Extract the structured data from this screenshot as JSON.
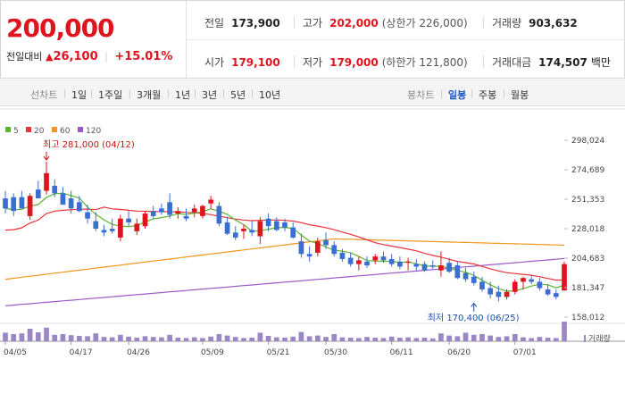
{
  "quote": {
    "price": "200,000",
    "change_label": "전일대비",
    "change_arrow": "▲",
    "change_amount": "26,100",
    "change_percent": "+15.01%",
    "prev_close_label": "전일",
    "prev_close": "173,900",
    "high_label": "고가",
    "high": "202,000",
    "upper_limit_text": "(상한가 226,000)",
    "volume_label": "거래량",
    "volume": "903,632",
    "open_label": "시가",
    "open": "179,100",
    "low_label": "저가",
    "low": "179,000",
    "lower_limit_text": "(하한가 121,800)",
    "trade_value_label": "거래대금",
    "trade_value": "174,507",
    "trade_value_unit": "백만"
  },
  "toolbar": {
    "line_chart_label": "선차트",
    "line_periods": [
      "1일",
      "1주일",
      "3개월",
      "1년",
      "3년",
      "5년",
      "10년"
    ],
    "candle_chart_label": "봉차트",
    "candle_periods": [
      "일봉",
      "주봉",
      "월봉"
    ],
    "active_candle_period": "일봉"
  },
  "colors": {
    "up": "#e0141e",
    "down": "#3a6fd0",
    "ma5": "#5cb531",
    "ma20": "#e8333b",
    "ma60": "#f0961e",
    "ma120": "#9b59c6",
    "volume": "#9b87c6"
  },
  "chart_data": {
    "type": "candlestick",
    "title": "",
    "legend": [
      {
        "name": "5",
        "color": "#5cb531"
      },
      {
        "name": "20",
        "color": "#e8333b"
      },
      {
        "name": "60",
        "color": "#f0961e"
      },
      {
        "name": "120",
        "color": "#9b59c6"
      }
    ],
    "legend_position": "top-left",
    "y_ticks": [
      "298,024",
      "274,689",
      "251,353",
      "228,018",
      "204,683",
      "181,347",
      "158,012"
    ],
    "y_tick_values": [
      298024,
      274689,
      251353,
      228018,
      204683,
      181347,
      158012
    ],
    "ylim": [
      158012,
      298024
    ],
    "x_tick_labels": [
      "04/05",
      "04/17",
      "04/26",
      "05/09",
      "05/21",
      "05/30",
      "06/11",
      "06/20",
      "07/01"
    ],
    "x_tick_indices": [
      0,
      8,
      15,
      24,
      32,
      39,
      47,
      54,
      62
    ],
    "volume_label": "거래량",
    "annotations": {
      "high": {
        "text": "최고 281,000 (04/12)",
        "index": 5,
        "value": 281000
      },
      "low": {
        "text": "최저 170,400 (06/25)",
        "index": 57,
        "value": 170400
      }
    },
    "candles": [
      {
        "o": 252000,
        "h": 258000,
        "l": 240000,
        "c": 244000,
        "v": 24
      },
      {
        "o": 253000,
        "h": 256000,
        "l": 238000,
        "c": 242000,
        "v": 20
      },
      {
        "o": 253000,
        "h": 258000,
        "l": 245000,
        "c": 244000,
        "v": 22
      },
      {
        "o": 238000,
        "h": 256000,
        "l": 235000,
        "c": 254000,
        "v": 35
      },
      {
        "o": 259000,
        "h": 266000,
        "l": 252000,
        "c": 252000,
        "v": 25
      },
      {
        "o": 258000,
        "h": 281000,
        "l": 255000,
        "c": 272000,
        "v": 38
      },
      {
        "o": 262000,
        "h": 267000,
        "l": 253000,
        "c": 256000,
        "v": 18
      },
      {
        "o": 256000,
        "h": 261000,
        "l": 247000,
        "c": 247000,
        "v": 20
      },
      {
        "o": 252000,
        "h": 258000,
        "l": 240000,
        "c": 244000,
        "v": 17
      },
      {
        "o": 249000,
        "h": 254000,
        "l": 241000,
        "c": 242000,
        "v": 15
      },
      {
        "o": 241000,
        "h": 247000,
        "l": 232000,
        "c": 236000,
        "v": 14
      },
      {
        "o": 234000,
        "h": 241000,
        "l": 226000,
        "c": 228000,
        "v": 22
      },
      {
        "o": 227000,
        "h": 231000,
        "l": 222000,
        "c": 225000,
        "v": 12
      },
      {
        "o": 228000,
        "h": 236000,
        "l": 224000,
        "c": 226000,
        "v": 11
      },
      {
        "o": 221000,
        "h": 239000,
        "l": 218000,
        "c": 236000,
        "v": 18
      },
      {
        "o": 236000,
        "h": 242000,
        "l": 230000,
        "c": 233000,
        "v": 13
      },
      {
        "o": 226000,
        "h": 236000,
        "l": 223000,
        "c": 232000,
        "v": 10
      },
      {
        "o": 230000,
        "h": 242000,
        "l": 228000,
        "c": 240000,
        "v": 14
      },
      {
        "o": 242000,
        "h": 246000,
        "l": 236000,
        "c": 238000,
        "v": 12
      },
      {
        "o": 244000,
        "h": 248000,
        "l": 239000,
        "c": 241000,
        "v": 11
      },
      {
        "o": 249000,
        "h": 256000,
        "l": 236000,
        "c": 239000,
        "v": 18
      },
      {
        "o": 240000,
        "h": 245000,
        "l": 236000,
        "c": 242000,
        "v": 10
      },
      {
        "o": 238000,
        "h": 244000,
        "l": 234000,
        "c": 236000,
        "v": 9
      },
      {
        "o": 241000,
        "h": 247000,
        "l": 237000,
        "c": 244000,
        "v": 11
      },
      {
        "o": 238000,
        "h": 247000,
        "l": 236000,
        "c": 246000,
        "v": 9
      },
      {
        "o": 248000,
        "h": 254000,
        "l": 244000,
        "c": 251000,
        "v": 13
      },
      {
        "o": 246000,
        "h": 249000,
        "l": 230000,
        "c": 232000,
        "v": 20
      },
      {
        "o": 233000,
        "h": 237000,
        "l": 223000,
        "c": 224000,
        "v": 16
      },
      {
        "o": 225000,
        "h": 230000,
        "l": 219000,
        "c": 221000,
        "v": 12
      },
      {
        "o": 226000,
        "h": 231000,
        "l": 220000,
        "c": 228000,
        "v": 9
      },
      {
        "o": 227000,
        "h": 234000,
        "l": 222000,
        "c": 225000,
        "v": 10
      },
      {
        "o": 222000,
        "h": 237000,
        "l": 216000,
        "c": 234000,
        "v": 24
      },
      {
        "o": 236000,
        "h": 240000,
        "l": 226000,
        "c": 230000,
        "v": 15
      },
      {
        "o": 234000,
        "h": 237000,
        "l": 226000,
        "c": 227000,
        "v": 11
      },
      {
        "o": 233000,
        "h": 236000,
        "l": 226000,
        "c": 229000,
        "v": 10
      },
      {
        "o": 229000,
        "h": 233000,
        "l": 220000,
        "c": 221000,
        "v": 13
      },
      {
        "o": 218000,
        "h": 224000,
        "l": 205000,
        "c": 208000,
        "v": 26
      },
      {
        "o": 208000,
        "h": 214000,
        "l": 202000,
        "c": 206000,
        "v": 14
      },
      {
        "o": 209000,
        "h": 221000,
        "l": 206000,
        "c": 218000,
        "v": 16
      },
      {
        "o": 219000,
        "h": 225000,
        "l": 212000,
        "c": 215000,
        "v": 12
      },
      {
        "o": 215000,
        "h": 218000,
        "l": 206000,
        "c": 208000,
        "v": 20
      },
      {
        "o": 209000,
        "h": 212000,
        "l": 202000,
        "c": 204000,
        "v": 11
      },
      {
        "o": 205000,
        "h": 209000,
        "l": 198000,
        "c": 200000,
        "v": 10
      },
      {
        "o": 200000,
        "h": 206000,
        "l": 195000,
        "c": 203000,
        "v": 9
      },
      {
        "o": 202000,
        "h": 206000,
        "l": 197000,
        "c": 199000,
        "v": 12
      },
      {
        "o": 203000,
        "h": 208000,
        "l": 200000,
        "c": 206000,
        "v": 10
      },
      {
        "o": 206000,
        "h": 210000,
        "l": 201000,
        "c": 203000,
        "v": 9
      },
      {
        "o": 204000,
        "h": 208000,
        "l": 198000,
        "c": 200000,
        "v": 13
      },
      {
        "o": 202000,
        "h": 206000,
        "l": 196000,
        "c": 198000,
        "v": 10
      },
      {
        "o": 201000,
        "h": 205000,
        "l": 195000,
        "c": 202000,
        "v": 11
      },
      {
        "o": 200000,
        "h": 204000,
        "l": 195000,
        "c": 198000,
        "v": 9
      },
      {
        "o": 200000,
        "h": 202000,
        "l": 194000,
        "c": 195000,
        "v": 10
      },
      {
        "o": 199000,
        "h": 203000,
        "l": 196000,
        "c": 198000,
        "v": 8
      },
      {
        "o": 195000,
        "h": 210000,
        "l": 190000,
        "c": 199000,
        "v": 22
      },
      {
        "o": 201000,
        "h": 205000,
        "l": 193000,
        "c": 194000,
        "v": 16
      },
      {
        "o": 199000,
        "h": 202000,
        "l": 188000,
        "c": 189000,
        "v": 14
      },
      {
        "o": 193000,
        "h": 197000,
        "l": 186000,
        "c": 188000,
        "v": 24
      },
      {
        "o": 190000,
        "h": 194000,
        "l": 183000,
        "c": 185000,
        "v": 18
      },
      {
        "o": 186000,
        "h": 190000,
        "l": 178000,
        "c": 180000,
        "v": 20
      },
      {
        "o": 181000,
        "h": 186000,
        "l": 173000,
        "c": 176000,
        "v": 16
      },
      {
        "o": 178000,
        "h": 183000,
        "l": 170400,
        "c": 174000,
        "v": 12
      },
      {
        "o": 174000,
        "h": 180000,
        "l": 172000,
        "c": 178000,
        "v": 14
      },
      {
        "o": 178000,
        "h": 188000,
        "l": 176000,
        "c": 186000,
        "v": 20
      },
      {
        "o": 186000,
        "h": 190000,
        "l": 180000,
        "c": 189000,
        "v": 11
      },
      {
        "o": 188000,
        "h": 191000,
        "l": 184000,
        "c": 186000,
        "v": 9
      },
      {
        "o": 186000,
        "h": 189000,
        "l": 179000,
        "c": 181000,
        "v": 12
      },
      {
        "o": 180000,
        "h": 184000,
        "l": 175000,
        "c": 176000,
        "v": 10
      },
      {
        "o": 177000,
        "h": 180000,
        "l": 172000,
        "c": 174000,
        "v": 9
      },
      {
        "o": 179100,
        "h": 202000,
        "l": 179000,
        "c": 200000,
        "v": 55
      }
    ]
  }
}
